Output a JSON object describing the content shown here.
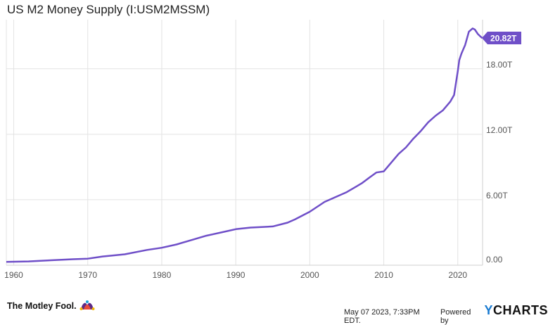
{
  "chart_data": {
    "type": "line",
    "title": "US M2 Money Supply (I:USM2MSSM)",
    "xlim": [
      1959,
      2023.35
    ],
    "ylim": [
      0,
      22.5
    ],
    "x_ticks": [
      1960,
      1970,
      1980,
      1990,
      2000,
      2010,
      2020
    ],
    "x_tick_labels": [
      "1960",
      "1970",
      "1980",
      "1990",
      "2000",
      "2010",
      "2020"
    ],
    "y_ticks": [
      0,
      6,
      12,
      18
    ],
    "y_tick_labels": [
      "0.00",
      "6.00T",
      "12.00T",
      "18.00T"
    ],
    "grid": true,
    "colors": {
      "series": "#6f4fc8"
    },
    "series": [
      {
        "last_value_label": "20.82T",
        "x": [
          1959,
          1962,
          1965,
          1968,
          1970,
          1972,
          1975,
          1978,
          1980,
          1982,
          1984,
          1986,
          1987,
          1988,
          1990,
          1992,
          1993,
          1995,
          1997,
          1998,
          2000,
          2002,
          2003,
          2005,
          2007,
          2008,
          2009,
          2010,
          2011,
          2012,
          2013,
          2014,
          2015,
          2016,
          2017,
          2018,
          2019,
          2019.5,
          2020,
          2020.2,
          2020.5,
          2021,
          2021.5,
          2022,
          2022.3,
          2022.7,
          2023,
          2023.3
        ],
        "y": [
          0.3,
          0.35,
          0.45,
          0.55,
          0.6,
          0.8,
          1.0,
          1.4,
          1.6,
          1.9,
          2.3,
          2.7,
          2.85,
          3.0,
          3.3,
          3.45,
          3.48,
          3.55,
          3.9,
          4.2,
          4.9,
          5.8,
          6.1,
          6.7,
          7.5,
          8.0,
          8.5,
          8.6,
          9.4,
          10.2,
          10.8,
          11.6,
          12.3,
          13.1,
          13.7,
          14.2,
          15.0,
          15.6,
          17.8,
          18.8,
          19.4,
          20.2,
          21.4,
          21.7,
          21.6,
          21.2,
          21.0,
          20.82
        ]
      }
    ]
  },
  "footer": {
    "brand": "The Motley Fool.",
    "timestamp": "May 07 2023, 7:33PM EDT.",
    "powered_by": "Powered by",
    "ycharts_y": "Y",
    "ycharts_rest": "CHARTS"
  }
}
